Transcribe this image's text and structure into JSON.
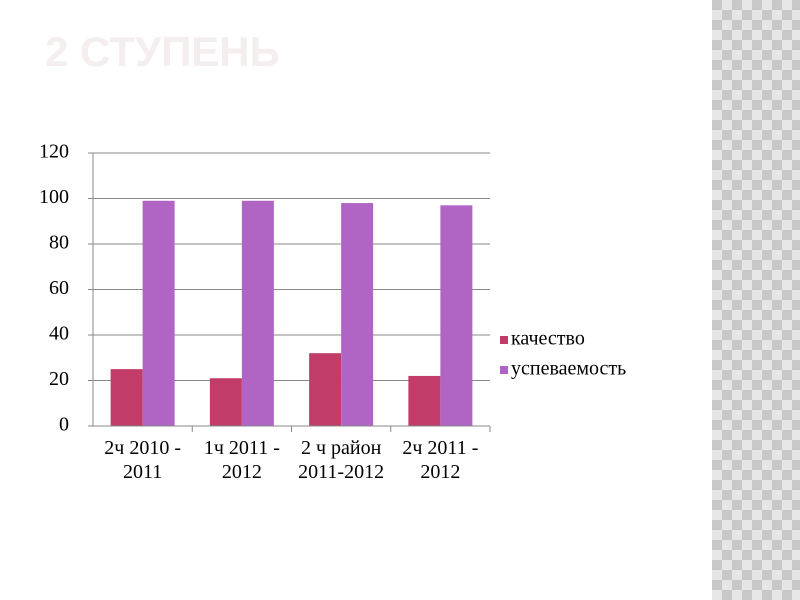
{
  "title": "2 СТУПЕНЬ",
  "chart_data": {
    "type": "bar",
    "categories": [
      "2ч 2010 - 2011",
      "1ч 2011 - 2012",
      "2 ч район 2011-2012",
      "2ч 2011 - 2012"
    ],
    "series": [
      {
        "name": "качество",
        "color": "#c13c69",
        "values": [
          25,
          21,
          32,
          22
        ]
      },
      {
        "name": "успеваемость",
        "color": "#b065c4",
        "values": [
          99,
          99,
          98,
          97
        ]
      }
    ],
    "ylim": [
      0,
      120
    ],
    "yticks": [
      0,
      20,
      40,
      60,
      80,
      100,
      120
    ],
    "grid": true,
    "legend": "right"
  }
}
